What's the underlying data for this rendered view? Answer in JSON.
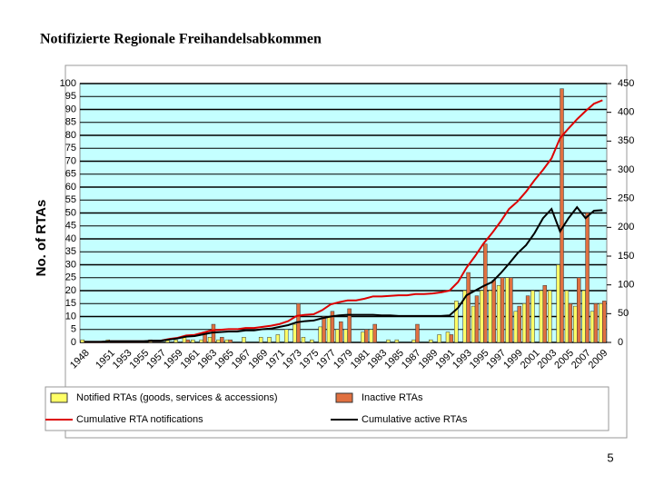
{
  "page_number": "5",
  "chart_data": {
    "type": "bar",
    "title": "Notifizierte Regionale Freihandelsabkommen",
    "y_label": "No. of RTAs",
    "categories": [
      "1948",
      null,
      null,
      "1951",
      null,
      "1953",
      null,
      "1955",
      null,
      "1957",
      null,
      "1959",
      null,
      "1961",
      null,
      "1963",
      null,
      "1965",
      null,
      "1967",
      null,
      "1969",
      null,
      "1971",
      null,
      "1973",
      null,
      "1975",
      null,
      "1977",
      null,
      "1979",
      null,
      "1981",
      null,
      "1983",
      null,
      "1985",
      null,
      "1987",
      null,
      "1989",
      null,
      "1991",
      null,
      "1993",
      null,
      "1995",
      null,
      "1997",
      null,
      "1999",
      null,
      "2001",
      null,
      "2003",
      null,
      "2005",
      null,
      "2007",
      null,
      "2009"
    ],
    "ylim": [
      0,
      100
    ],
    "yticks": [
      0,
      5,
      10,
      15,
      20,
      25,
      30,
      35,
      40,
      45,
      50,
      55,
      60,
      65,
      70,
      75,
      80,
      85,
      90,
      95,
      100
    ],
    "y2lim": [
      0,
      450
    ],
    "y2ticks": [
      0,
      50,
      100,
      150,
      200,
      250,
      300,
      350,
      400,
      450
    ],
    "grid": true,
    "series": [
      {
        "name": "Notified RTAs (goods, services & accessions)",
        "type": "bar",
        "color": "#ffff66",
        "values": [
          1,
          0,
          0,
          1,
          0,
          0,
          0,
          0,
          1,
          0,
          1,
          1,
          2,
          1,
          1,
          2,
          1,
          1,
          0,
          2,
          0,
          2,
          2,
          3,
          5,
          7,
          2,
          1,
          6,
          10,
          5,
          5,
          0,
          4,
          5,
          0,
          1,
          1,
          0,
          1,
          0,
          1,
          3,
          4,
          16,
          20,
          14,
          20,
          20,
          22,
          25,
          12,
          15,
          20,
          20,
          20,
          30,
          20,
          14,
          20,
          12,
          15
        ]
      },
      {
        "name": "Inactive RTAs",
        "type": "bar",
        "color": "#e07040",
        "values": [
          0,
          0,
          0,
          0,
          0,
          0,
          0,
          0,
          0,
          0,
          0,
          0,
          1,
          0,
          4,
          7,
          2,
          1,
          0,
          0,
          0,
          0,
          0,
          0,
          0,
          15,
          0,
          0,
          10,
          12,
          8,
          13,
          0,
          5,
          7,
          0,
          0,
          0,
          0,
          7,
          0,
          0,
          0,
          3,
          0,
          27,
          18,
          38,
          24,
          25,
          25,
          14,
          18,
          0,
          22,
          0,
          98,
          15,
          25,
          50,
          15,
          16
        ]
      },
      {
        "name": "Cumulative RTA notifications",
        "type": "line",
        "axis": "y2",
        "color": "#dd0000",
        "values": [
          1,
          1,
          1,
          2,
          2,
          2,
          2,
          2,
          3,
          3,
          6,
          8,
          12,
          13,
          17,
          21,
          22,
          23,
          23,
          25,
          25,
          27,
          29,
          32,
          37,
          46,
          48,
          49,
          56,
          66,
          70,
          73,
          73,
          76,
          80,
          80,
          81,
          82,
          82,
          84,
          84,
          85,
          87,
          90,
          105,
          130,
          150,
          172,
          190,
          210,
          232,
          245,
          262,
          282,
          300,
          320,
          355,
          372,
          388,
          402,
          415,
          421
        ]
      },
      {
        "name": "Cumulative active RTAs",
        "type": "line",
        "axis": "y2",
        "color": "#000000",
        "values": [
          1,
          1,
          1,
          2,
          2,
          2,
          2,
          2,
          3,
          3,
          5,
          7,
          10,
          11,
          14,
          17,
          18,
          19,
          19,
          21,
          21,
          23,
          24,
          27,
          30,
          35,
          37,
          38,
          42,
          45,
          47,
          48,
          48,
          48,
          48,
          47,
          47,
          46,
          46,
          46,
          46,
          46,
          46,
          47,
          60,
          82,
          90,
          98,
          105,
          120,
          137,
          155,
          169,
          190,
          216,
          232,
          193,
          216,
          235,
          216,
          229,
          230
        ]
      }
    ]
  }
}
